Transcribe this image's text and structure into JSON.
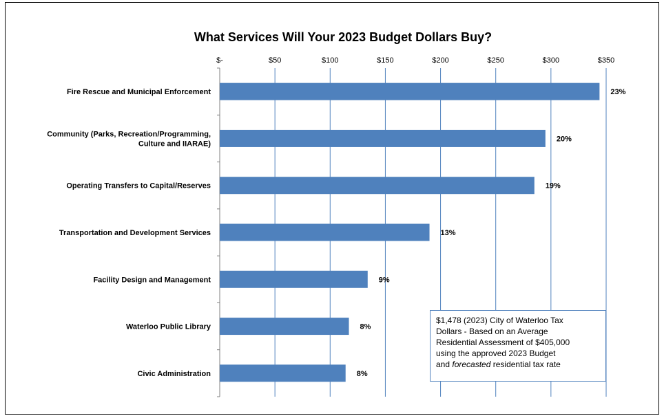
{
  "chart_data": {
    "type": "bar",
    "orientation": "horizontal",
    "title": "What Services Will Your 2023 Budget Dollars Buy?",
    "xlim": [
      0,
      350
    ],
    "x_tick_labels": [
      "$-",
      "$50",
      "$100",
      "$150",
      "$200",
      "$250",
      "$300",
      "$350"
    ],
    "x_tick_values": [
      0,
      50,
      100,
      150,
      200,
      250,
      300,
      350
    ],
    "x_axis_position": "top",
    "grid": "vertical",
    "bar_color": "#4f81bd",
    "categories": [
      [
        "Fire Rescue and Municipal Enforcement"
      ],
      [
        "Community (Parks, Recreation/Programming,",
        "Culture and IIARAE)"
      ],
      [
        "Operating Transfers to Capital/Reserves"
      ],
      [
        "Transportation and Development Services"
      ],
      [
        "Facility Design and Management"
      ],
      [
        "Waterloo Public Library"
      ],
      [
        "Civic Administration"
      ]
    ],
    "values": [
      344,
      295,
      285,
      190,
      134,
      117,
      114
    ],
    "data_labels": [
      "23%",
      "20%",
      "19%",
      "13%",
      "9%",
      "8%",
      "8%"
    ]
  },
  "note": {
    "line1": "$1,478 (2023) City of Waterloo Tax",
    "line2": "Dollars  - Based on an Average",
    "line3": "Residential Assessment of $405,000",
    "line4": "using the approved 2023 Budget",
    "line5_em": "forecasted",
    "line5_rest": " residential tax rate",
    "line5_pre": "and "
  }
}
